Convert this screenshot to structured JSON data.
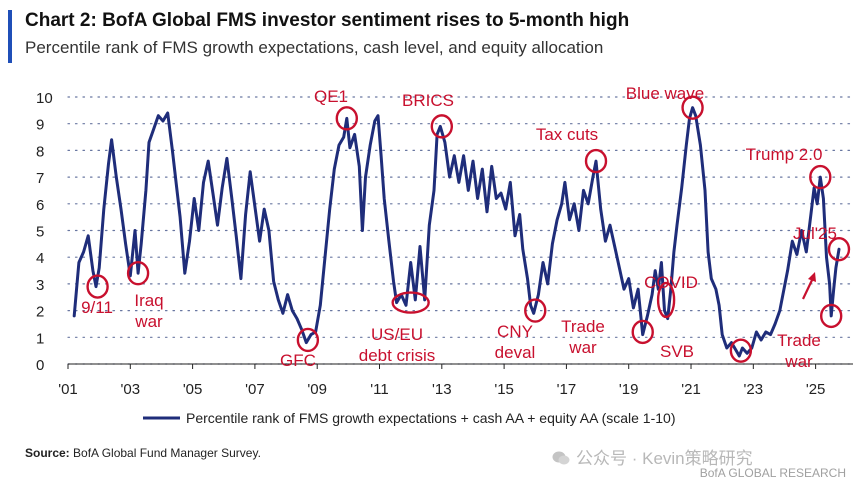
{
  "header": {
    "title": "Chart 2: BofA Global FMS investor sentiment rises to 5-month high",
    "subtitle": "Percentile rank of FMS growth expectations, cash level, and equity allocation"
  },
  "footer": {
    "source_label": "Source:",
    "source_text": " BofA Global Fund Manager Survey.",
    "watermark": "公众号 · Kevin策略研究",
    "credit": "BofA GLOBAL RESEARCH"
  },
  "colors": {
    "line": "#1f2d7a",
    "annotation": "#c8102e",
    "accent": "#1f4fb8"
  },
  "chart_data": {
    "type": "line",
    "title": "Chart 2: BofA Global FMS investor sentiment rises to 5-month high",
    "ylim": [
      0,
      10
    ],
    "xlim": [
      2001,
      2026.2
    ],
    "y_ticks": [
      0,
      1,
      2,
      3,
      4,
      5,
      6,
      7,
      8,
      9,
      10
    ],
    "x_ticks": [
      {
        "label": "'01",
        "x": 2001
      },
      {
        "label": "'03",
        "x": 2003
      },
      {
        "label": "'05",
        "x": 2005
      },
      {
        "label": "'07",
        "x": 2007
      },
      {
        "label": "'09",
        "x": 2009
      },
      {
        "label": "'11",
        "x": 2011
      },
      {
        "label": "'13",
        "x": 2013
      },
      {
        "label": "'15",
        "x": 2015
      },
      {
        "label": "'17",
        "x": 2017
      },
      {
        "label": "'19",
        "x": 2019
      },
      {
        "label": "'21",
        "x": 2021
      },
      {
        "label": "'23",
        "x": 2023
      },
      {
        "label": "'25",
        "x": 2025
      }
    ],
    "legend": "Percentile rank of FMS growth expectations + cash AA + equity AA (scale 1-10)",
    "legend_position": "bottom",
    "series": [
      {
        "name": "Percentile rank of FMS growth expectations + cash AA + equity AA (scale 1-10)",
        "points": [
          [
            2001.2,
            1.8
          ],
          [
            2001.35,
            3.8
          ],
          [
            2001.5,
            4.2
          ],
          [
            2001.65,
            4.8
          ],
          [
            2001.8,
            3.5
          ],
          [
            2001.9,
            2.9
          ],
          [
            2002.0,
            3.6
          ],
          [
            2002.15,
            5.8
          ],
          [
            2002.3,
            7.5
          ],
          [
            2002.4,
            8.4
          ],
          [
            2002.55,
            7.0
          ],
          [
            2002.7,
            5.8
          ],
          [
            2002.85,
            4.5
          ],
          [
            2003.0,
            3.3
          ],
          [
            2003.15,
            5.0
          ],
          [
            2003.25,
            3.4
          ],
          [
            2003.35,
            4.5
          ],
          [
            2003.5,
            6.5
          ],
          [
            2003.6,
            8.3
          ],
          [
            2003.75,
            8.8
          ],
          [
            2003.9,
            9.3
          ],
          [
            2004.05,
            9.1
          ],
          [
            2004.2,
            9.4
          ],
          [
            2004.35,
            8.0
          ],
          [
            2004.5,
            6.5
          ],
          [
            2004.6,
            5.5
          ],
          [
            2004.75,
            3.4
          ],
          [
            2004.9,
            4.6
          ],
          [
            2005.05,
            6.2
          ],
          [
            2005.2,
            5.0
          ],
          [
            2005.35,
            6.8
          ],
          [
            2005.5,
            7.6
          ],
          [
            2005.65,
            6.4
          ],
          [
            2005.8,
            5.2
          ],
          [
            2005.95,
            6.6
          ],
          [
            2006.1,
            7.7
          ],
          [
            2006.25,
            6.3
          ],
          [
            2006.4,
            4.8
          ],
          [
            2006.55,
            3.2
          ],
          [
            2006.7,
            5.6
          ],
          [
            2006.85,
            7.2
          ],
          [
            2007.0,
            5.9
          ],
          [
            2007.15,
            4.6
          ],
          [
            2007.3,
            5.8
          ],
          [
            2007.45,
            5.0
          ],
          [
            2007.6,
            3.1
          ],
          [
            2007.75,
            2.4
          ],
          [
            2007.9,
            1.9
          ],
          [
            2008.05,
            2.6
          ],
          [
            2008.2,
            2.0
          ],
          [
            2008.35,
            1.7
          ],
          [
            2008.5,
            1.3
          ],
          [
            2008.65,
            0.8
          ],
          [
            2008.8,
            1.1
          ],
          [
            2008.95,
            1.2
          ],
          [
            2009.1,
            2.2
          ],
          [
            2009.25,
            4.0
          ],
          [
            2009.4,
            5.8
          ],
          [
            2009.55,
            7.3
          ],
          [
            2009.7,
            8.2
          ],
          [
            2009.85,
            8.5
          ],
          [
            2009.95,
            9.2
          ],
          [
            2010.05,
            8.1
          ],
          [
            2010.2,
            8.6
          ],
          [
            2010.35,
            7.4
          ],
          [
            2010.45,
            5.0
          ],
          [
            2010.55,
            7.0
          ],
          [
            2010.7,
            8.2
          ],
          [
            2010.85,
            9.1
          ],
          [
            2010.95,
            9.3
          ],
          [
            2011.05,
            7.8
          ],
          [
            2011.15,
            6.2
          ],
          [
            2011.3,
            4.6
          ],
          [
            2011.45,
            3.1
          ],
          [
            2011.55,
            2.3
          ],
          [
            2011.7,
            2.6
          ],
          [
            2011.85,
            2.2
          ],
          [
            2012.0,
            3.8
          ],
          [
            2012.15,
            2.4
          ],
          [
            2012.3,
            4.4
          ],
          [
            2012.45,
            2.4
          ],
          [
            2012.6,
            5.2
          ],
          [
            2012.75,
            6.5
          ],
          [
            2012.85,
            8.6
          ],
          [
            2012.95,
            8.9
          ],
          [
            2013.1,
            8.3
          ],
          [
            2013.25,
            7.0
          ],
          [
            2013.4,
            7.8
          ],
          [
            2013.55,
            6.8
          ],
          [
            2013.7,
            7.8
          ],
          [
            2013.85,
            6.5
          ],
          [
            2014.0,
            7.6
          ],
          [
            2014.15,
            6.2
          ],
          [
            2014.3,
            7.3
          ],
          [
            2014.45,
            5.7
          ],
          [
            2014.6,
            7.4
          ],
          [
            2014.75,
            6.2
          ],
          [
            2014.9,
            6.4
          ],
          [
            2015.05,
            5.8
          ],
          [
            2015.2,
            6.8
          ],
          [
            2015.35,
            4.8
          ],
          [
            2015.5,
            5.6
          ],
          [
            2015.6,
            4.3
          ],
          [
            2015.75,
            3.2
          ],
          [
            2015.85,
            2.2
          ],
          [
            2015.95,
            1.9
          ],
          [
            2016.1,
            2.6
          ],
          [
            2016.25,
            3.8
          ],
          [
            2016.4,
            3.0
          ],
          [
            2016.55,
            4.5
          ],
          [
            2016.7,
            5.4
          ],
          [
            2016.85,
            6.0
          ],
          [
            2016.95,
            6.8
          ],
          [
            2017.1,
            5.4
          ],
          [
            2017.25,
            6.0
          ],
          [
            2017.4,
            5.0
          ],
          [
            2017.55,
            6.5
          ],
          [
            2017.7,
            6.0
          ],
          [
            2017.85,
            7.0
          ],
          [
            2017.95,
            7.6
          ],
          [
            2018.1,
            5.8
          ],
          [
            2018.25,
            4.6
          ],
          [
            2018.4,
            5.2
          ],
          [
            2018.55,
            4.4
          ],
          [
            2018.7,
            3.6
          ],
          [
            2018.85,
            2.8
          ],
          [
            2019.0,
            3.2
          ],
          [
            2019.15,
            2.1
          ],
          [
            2019.3,
            2.8
          ],
          [
            2019.45,
            1.1
          ],
          [
            2019.6,
            1.8
          ],
          [
            2019.75,
            2.6
          ],
          [
            2019.85,
            3.5
          ],
          [
            2019.95,
            2.8
          ],
          [
            2020.05,
            3.8
          ],
          [
            2020.15,
            2.0
          ],
          [
            2020.25,
            1.7
          ],
          [
            2020.35,
            2.8
          ],
          [
            2020.45,
            4.2
          ],
          [
            2020.55,
            5.2
          ],
          [
            2020.7,
            6.6
          ],
          [
            2020.85,
            8.2
          ],
          [
            2020.95,
            9.2
          ],
          [
            2021.05,
            9.6
          ],
          [
            2021.15,
            9.3
          ],
          [
            2021.3,
            8.2
          ],
          [
            2021.45,
            6.5
          ],
          [
            2021.55,
            4.2
          ],
          [
            2021.65,
            3.2
          ],
          [
            2021.8,
            2.8
          ],
          [
            2021.9,
            2.2
          ],
          [
            2022.0,
            1.1
          ],
          [
            2022.15,
            0.6
          ],
          [
            2022.3,
            0.8
          ],
          [
            2022.45,
            0.5
          ],
          [
            2022.55,
            0.3
          ],
          [
            2022.65,
            0.6
          ],
          [
            2022.8,
            0.4
          ],
          [
            2022.95,
            0.6
          ],
          [
            2023.1,
            1.2
          ],
          [
            2023.25,
            0.9
          ],
          [
            2023.4,
            1.2
          ],
          [
            2023.55,
            1.1
          ],
          [
            2023.7,
            1.5
          ],
          [
            2023.85,
            2.0
          ],
          [
            2023.95,
            2.6
          ],
          [
            2024.1,
            3.5
          ],
          [
            2024.25,
            4.6
          ],
          [
            2024.4,
            4.1
          ],
          [
            2024.55,
            5.0
          ],
          [
            2024.7,
            4.2
          ],
          [
            2024.85,
            5.6
          ],
          [
            2024.95,
            6.6
          ],
          [
            2025.05,
            6.0
          ],
          [
            2025.15,
            7.0
          ],
          [
            2025.25,
            6.2
          ],
          [
            2025.35,
            4.0
          ],
          [
            2025.45,
            3.0
          ],
          [
            2025.5,
            1.8
          ],
          [
            2025.58,
            2.8
          ],
          [
            2025.65,
            3.6
          ],
          [
            2025.75,
            4.3
          ]
        ]
      }
    ],
    "annotations": [
      {
        "label": "9/11",
        "x": 2001.95,
        "y": 2.9
      },
      {
        "label": "Iraq war",
        "x": 2003.25,
        "y": 3.4
      },
      {
        "label": "GFC",
        "x": 2008.7,
        "y": 0.9
      },
      {
        "label": "QE1",
        "x": 2009.95,
        "y": 9.2
      },
      {
        "label": "US/EU debt crisis",
        "x": 2012.0,
        "y": 2.3
      },
      {
        "label": "BRICS",
        "x": 2013.0,
        "y": 8.9
      },
      {
        "label": "CNY deval",
        "x": 2016.0,
        "y": 2.0
      },
      {
        "label": "Tax cuts",
        "x": 2017.95,
        "y": 7.6
      },
      {
        "label": "Trade war",
        "x": 2019.45,
        "y": 1.2
      },
      {
        "label": "COVID",
        "x": 2020.2,
        "y": 2.1
      },
      {
        "label": "Blue wave",
        "x": 2021.05,
        "y": 9.6
      },
      {
        "label": "SVB",
        "x": 2022.6,
        "y": 0.5
      },
      {
        "label": "Trump 2.0",
        "x": 2025.15,
        "y": 7.0
      },
      {
        "label": "Trade war",
        "x": 2025.5,
        "y": 1.8
      },
      {
        "label": "Jul'25",
        "x": 2025.75,
        "y": 4.3
      }
    ]
  }
}
